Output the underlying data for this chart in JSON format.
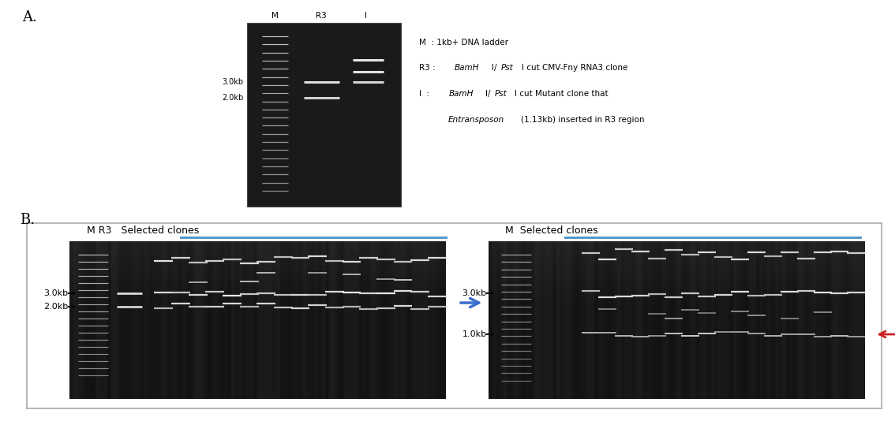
{
  "title_A": "A.",
  "title_B": "B.",
  "panel_A_bg": "#e8efb8",
  "label_M": "M",
  "label_R3": "R3",
  "label_I": "I",
  "panelA_marker_3kb": "3.0kb",
  "panelA_marker_2kb": "2.0kb",
  "panelB_left_title": "M R3   Selected clones",
  "panelB_right_title": "M  Selected clones",
  "panelB_left_marker_3kb": "3.0kb",
  "panelB_left_marker_2kb": "2.0kb",
  "panelB_right_marker_3kb": "3.0kb",
  "panelB_right_marker_1kb": "1.0kb",
  "blue_arrow_color": "#3a6ecc",
  "red_arrow_color": "#cc2222",
  "blue_bar_color": "#5599cc",
  "bg_color": "#ffffff",
  "text_color": "#000000",
  "gel_dark": "#181818",
  "gel_mid": "#404040"
}
